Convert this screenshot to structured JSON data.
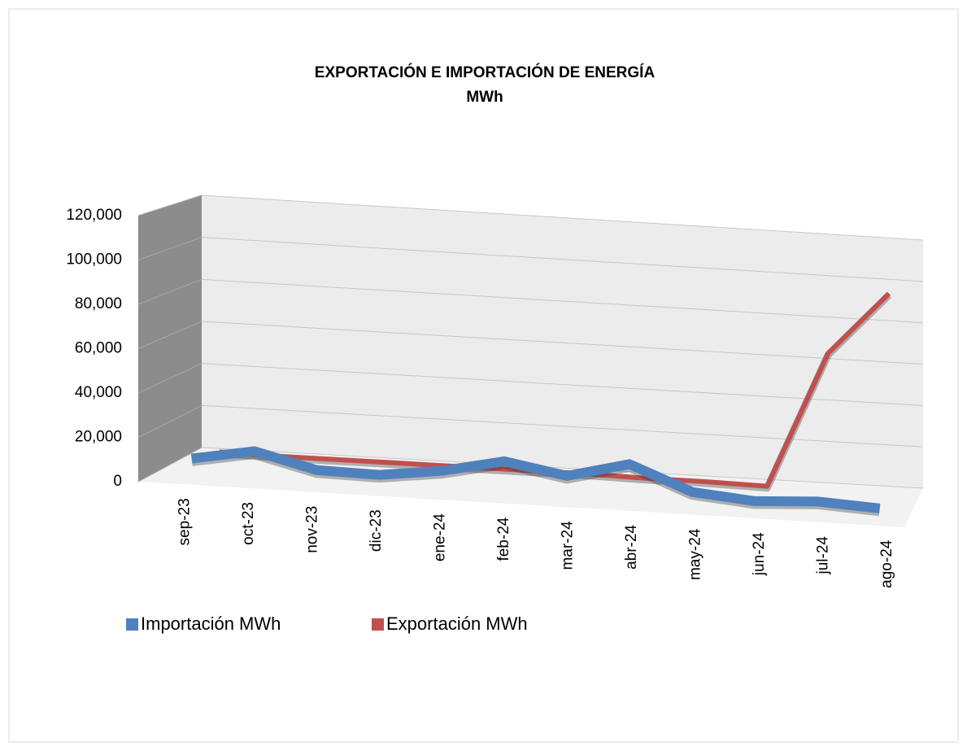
{
  "chart_data": {
    "type": "line3d",
    "title": "EXPORTACIÓN E IMPORTACIÓN DE ENERGÍA",
    "subtitle": "MWh",
    "categories": [
      "sep-23",
      "oct-23",
      "nov-23",
      "dic-23",
      "ene-24",
      "feb-24",
      "mar-24",
      "abr-24",
      "may-24",
      "jun-24",
      "jul-24",
      "ago-24"
    ],
    "series": [
      {
        "name": "Importación MWh",
        "color": "#4f81bd",
        "values": [
          6000,
          11000,
          4000,
          3500,
          7000,
          13000,
          8000,
          15000,
          4000,
          1500,
          3000,
          1500
        ]
      },
      {
        "name": "Exportación MWh",
        "color": "#c0504d",
        "values": [
          2000,
          1500,
          1500,
          1500,
          1500,
          1500,
          1500,
          1000,
          1000,
          500,
          65000,
          95000
        ]
      }
    ],
    "ylim": [
      0,
      120000
    ],
    "yticks": [
      0,
      {
        "value": 20000,
        "label": "20,000"
      },
      {
        "value": 40000,
        "label": "40,000"
      },
      {
        "value": 60000,
        "label": "60,000"
      },
      {
        "value": 80000,
        "label": "80,000"
      },
      {
        "value": 100000,
        "label": "100,000"
      },
      {
        "value": 120000,
        "label": "120,000"
      }
    ],
    "grid": true,
    "legend": "bottom"
  }
}
